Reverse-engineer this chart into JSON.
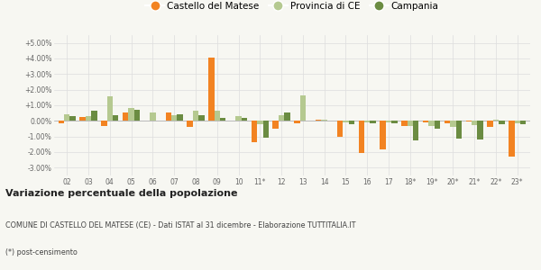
{
  "years": [
    "02",
    "03",
    "04",
    "05",
    "06",
    "07",
    "08",
    "09",
    "10",
    "11*",
    "12",
    "13",
    "14",
    "15",
    "16",
    "17",
    "18*",
    "19*",
    "20*",
    "21*",
    "22*",
    "23*"
  ],
  "castello": [
    -0.15,
    0.25,
    -0.3,
    0.55,
    0.0,
    0.55,
    -0.4,
    4.05,
    0.0,
    -1.35,
    -0.5,
    -0.15,
    0.05,
    -1.0,
    -2.05,
    -1.8,
    -0.3,
    -0.1,
    -0.15,
    -0.05,
    -0.4,
    -2.3
  ],
  "provincia": [
    0.4,
    0.3,
    1.55,
    0.85,
    0.55,
    0.35,
    0.65,
    0.65,
    0.3,
    -0.2,
    0.35,
    1.65,
    0.1,
    -0.1,
    -0.1,
    -0.1,
    -0.35,
    -0.3,
    -0.4,
    -0.25,
    0.1,
    -0.15
  ],
  "campania": [
    0.3,
    0.65,
    0.35,
    0.7,
    0.0,
    0.4,
    0.35,
    0.2,
    0.2,
    -1.05,
    0.55,
    0.0,
    0.0,
    -0.2,
    -0.15,
    -0.15,
    -1.25,
    -0.5,
    -1.15,
    -1.2,
    -0.2,
    -0.2
  ],
  "color_castello": "#f28322",
  "color_provincia": "#b5c990",
  "color_campania": "#6b8c42",
  "title": "Variazione percentuale della popolazione",
  "subtitle": "COMUNE DI CASTELLO DEL MATESE (CE) - Dati ISTAT al 31 dicembre - Elaborazione TUTTITALIA.IT",
  "footnote": "(*) post-censimento",
  "legend_labels": [
    "Castello del Matese",
    "Provincia di CE",
    "Campania"
  ],
  "ylim": [
    -3.5,
    5.5
  ],
  "yticks": [
    -3.0,
    -2.0,
    -1.0,
    0.0,
    1.0,
    2.0,
    3.0,
    4.0,
    5.0
  ],
  "ytick_labels": [
    "-3.00%",
    "-2.00%",
    "-1.00%",
    "0.00%",
    "+1.00%",
    "+2.00%",
    "+3.00%",
    "+4.00%",
    "+5.00%"
  ],
  "bg_color": "#f7f7f2",
  "bar_width": 0.27
}
